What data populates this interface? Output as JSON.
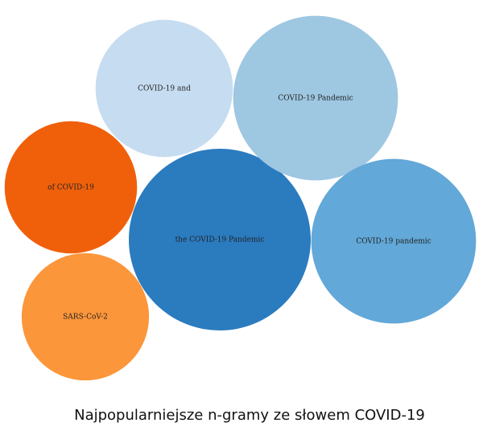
{
  "caption": "Najpopularniejsze n-gramy ze słowem COVID-19",
  "chart_data": {
    "type": "bubble",
    "title": "",
    "legend": "none",
    "grid": false,
    "bubbles": [
      {
        "label": "the COVID-19 Pandemic",
        "size": 100,
        "color": "#2b7bbf"
      },
      {
        "label": "COVID-19 Pandemic",
        "size": 82,
        "color": "#9ec7e2"
      },
      {
        "label": "COVID-19 pandemic",
        "size": 82,
        "color": "#62a8d8"
      },
      {
        "label": "COVID-19 and",
        "size": 57,
        "color": "#c6dcf0"
      },
      {
        "label": "of COVID-19",
        "size": 53,
        "color": "#f0600b"
      },
      {
        "label": "SARS-CoV-2",
        "size": 49,
        "color": "#fc963a"
      }
    ]
  }
}
